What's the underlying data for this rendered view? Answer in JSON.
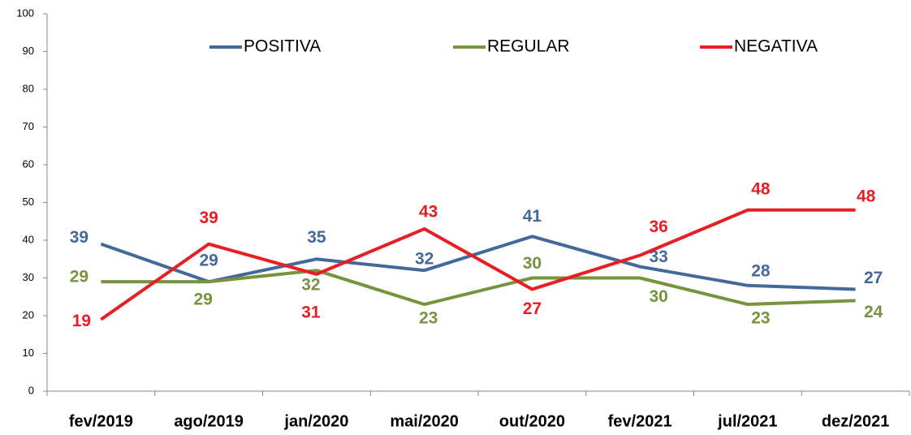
{
  "chart_data": {
    "type": "line",
    "categories": [
      "fev/2019",
      "ago/2019",
      "jan/2020",
      "mai/2020",
      "out/2020",
      "fev/2021",
      "jul/2021",
      "dez/2021"
    ],
    "series": [
      {
        "name": "POSITIVA",
        "color": "#44689a",
        "values": [
          39,
          29,
          35,
          32,
          41,
          33,
          28,
          27
        ]
      },
      {
        "name": "REGULAR",
        "color": "#77933c",
        "values": [
          29,
          29,
          32,
          23,
          30,
          30,
          23,
          24
        ]
      },
      {
        "name": "NEGATIVA",
        "color": "#e81e25",
        "values": [
          19,
          39,
          31,
          43,
          27,
          36,
          48,
          48
        ]
      }
    ],
    "ylim": [
      0,
      100
    ],
    "yticks": [
      0,
      10,
      20,
      30,
      40,
      50,
      60,
      70,
      80,
      90,
      100
    ],
    "grid": false,
    "legend": "top"
  }
}
